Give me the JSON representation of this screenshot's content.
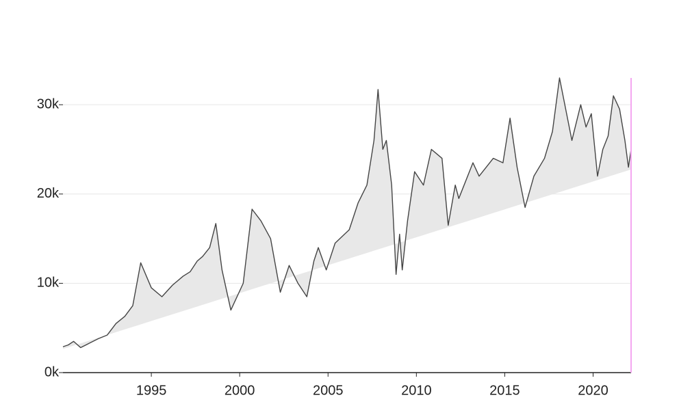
{
  "chart_data": {
    "type": "line",
    "x": [
      1990.0,
      1990.3,
      1990.6,
      1991.0,
      1991.5,
      1992.0,
      1992.5,
      1993.0,
      1993.5,
      1993.95,
      1994.4,
      1995.0,
      1995.6,
      1996.2,
      1996.8,
      1997.2,
      1997.6,
      1997.9,
      1998.3,
      1998.65,
      1999.0,
      1999.5,
      2000.2,
      2000.7,
      2001.2,
      2001.75,
      2002.3,
      2002.8,
      2003.3,
      2003.8,
      2004.2,
      2004.45,
      2004.9,
      2005.4,
      2006.2,
      2006.7,
      2007.2,
      2007.6,
      2007.83,
      2008.1,
      2008.3,
      2008.6,
      2008.85,
      2009.05,
      2009.2,
      2009.5,
      2009.9,
      2010.4,
      2010.85,
      2011.45,
      2011.8,
      2012.2,
      2012.4,
      2013.2,
      2013.55,
      2014.35,
      2014.9,
      2015.3,
      2015.7,
      2016.15,
      2016.65,
      2017.25,
      2017.7,
      2018.1,
      2018.55,
      2018.8,
      2019.3,
      2019.6,
      2019.9,
      2020.25,
      2020.55,
      2020.85,
      2021.15,
      2021.5,
      2021.8,
      2022.0,
      2022.15
    ],
    "series": [
      {
        "color": "#444444",
        "values": [
          2900,
          3100,
          3500,
          2800,
          3300,
          3800,
          4200,
          5500,
          6300,
          7500,
          12300,
          9500,
          8500,
          9800,
          10800,
          11300,
          12500,
          13000,
          14000,
          16700,
          11500,
          7000,
          10000,
          18300,
          17000,
          15000,
          9000,
          12000,
          10000,
          8500,
          12500,
          14000,
          11500,
          14500,
          16000,
          19000,
          21000,
          26000,
          31700,
          25000,
          26000,
          21000,
          11000,
          15500,
          11500,
          17000,
          22500,
          21000,
          25000,
          24000,
          16500,
          21000,
          19500,
          23500,
          22000,
          24000,
          23500,
          28500,
          23000,
          18500,
          22000,
          24000,
          27000,
          33000,
          28500,
          26000,
          30000,
          27500,
          29000,
          22000,
          25000,
          26500,
          31000,
          29500,
          26000,
          23000,
          25000
        ]
      }
    ],
    "trend": {
      "x": [
        1990.0,
        2022.15
      ],
      "values": [
        2650,
        22750
      ],
      "color": "#e8e8e8"
    },
    "highlight_x": 2022.15,
    "highlight_color": "#f4a6f0",
    "xlim": [
      1990.0,
      2022.15
    ],
    "ylim": [
      0,
      33000
    ],
    "xticks": [
      1995,
      2000,
      2005,
      2010,
      2015,
      2020
    ],
    "yticks": [
      {
        "value": 0,
        "label": "0k"
      },
      {
        "value": 10000,
        "label": "10k"
      },
      {
        "value": 20000,
        "label": "20k"
      },
      {
        "value": 30000,
        "label": "30k"
      }
    ],
    "grid": true
  }
}
